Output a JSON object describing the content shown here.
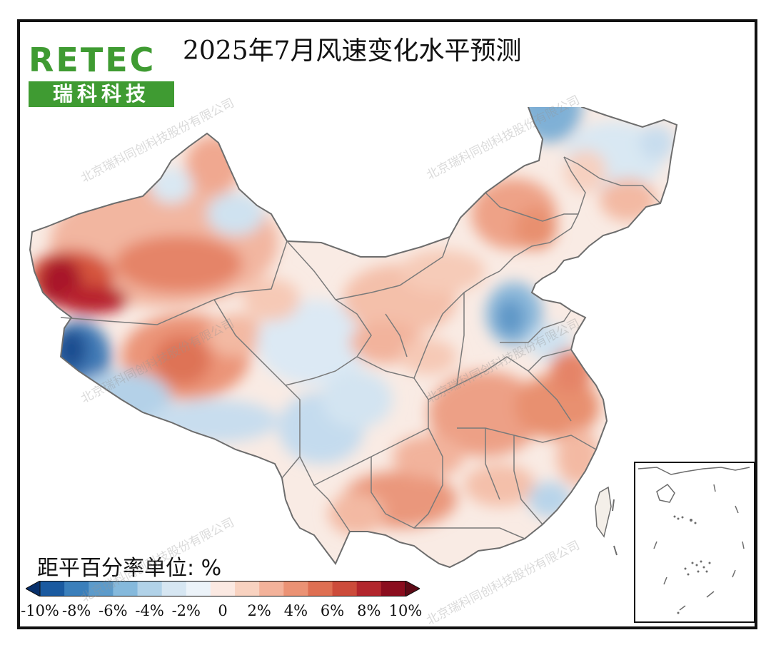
{
  "title": "2025年7月风速变化水平预测",
  "logo": {
    "brand": "RETEC",
    "name": "瑞科科技",
    "color": "#3f9b32"
  },
  "legend": {
    "unit_label": "距平百分率单位: %",
    "ticks": [
      "-10%",
      "-8%",
      "-6%",
      "-4%",
      "-2%",
      "0",
      "2%",
      "4%",
      "6%",
      "8%",
      "10%"
    ],
    "colors": [
      "#08306b",
      "#1a5aa0",
      "#3a7fbb",
      "#5c9bcb",
      "#85b9dc",
      "#b1d2e8",
      "#d6e6f2",
      "#ecf3f9",
      "#fbe9e2",
      "#f8d2c0",
      "#f3b29a",
      "#eb9274",
      "#de6f52",
      "#cc4b3a",
      "#b2262c",
      "#8b0d1e",
      "#5e0a16"
    ]
  },
  "watermark": "北京瑞科同创科技股份有限公司",
  "palette": {
    "deep_red": "#a8142a",
    "red": "#d8604a",
    "orange_red": "#e98b6e",
    "salmon": "#f2b39c",
    "light_salmon": "#f8d5c6",
    "pale": "#fbeee7",
    "pale_blue": "#e4eef6",
    "light_blue": "#bcd6ea",
    "blue": "#8ab7da",
    "deep_blue": "#3f79b5",
    "border": "#6d6d6d"
  }
}
